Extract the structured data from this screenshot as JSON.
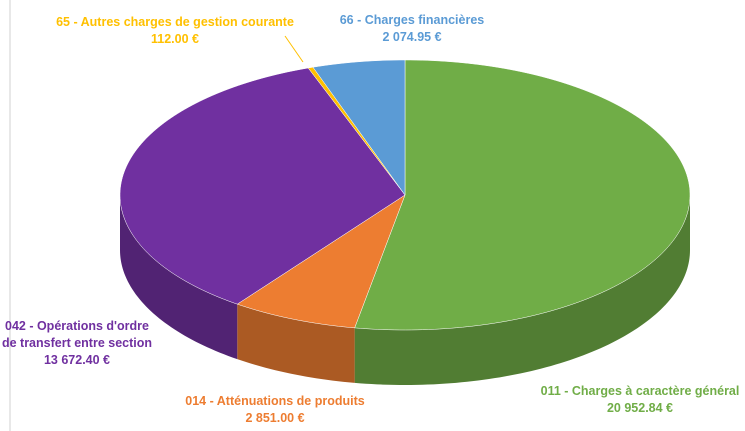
{
  "chart_data": {
    "type": "pie3d",
    "categories": [
      "011 - Charges à caractère général",
      "014 - Atténuations de produits",
      "042 - Opérations d'ordre de transfert entre section",
      "65 - Autres charges de gestion courante",
      "66 - Charges financières"
    ],
    "values": [
      20952.84,
      2851.0,
      13672.4,
      112.0,
      2074.95
    ],
    "value_labels": [
      "20 952.84 €",
      "2 851.00 €",
      "13 672.40 €",
      "112.00 €",
      "2 074.95 €"
    ],
    "colors": [
      "#70ad47",
      "#ed7d31",
      "#7030a0",
      "#ffc000",
      "#5b9bd5"
    ]
  }
}
